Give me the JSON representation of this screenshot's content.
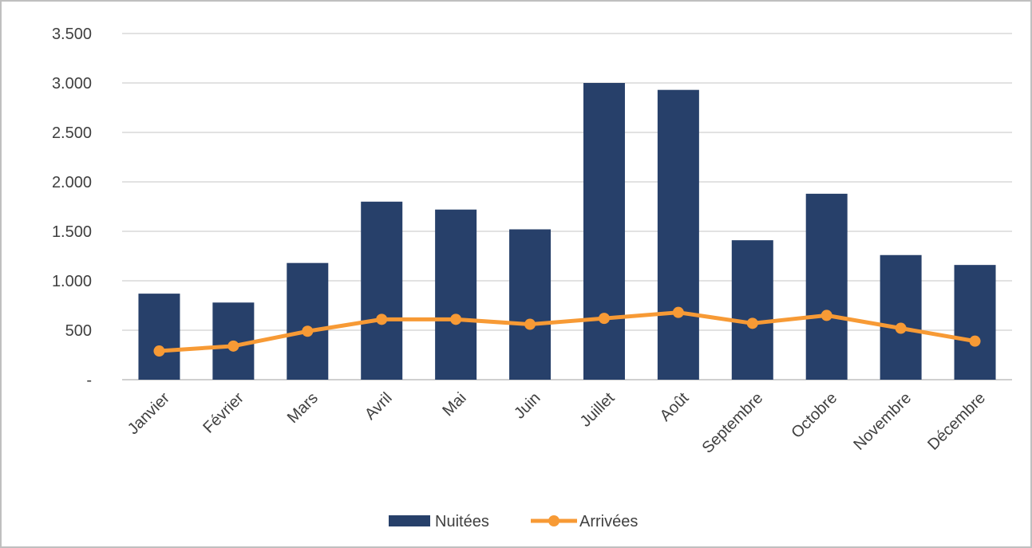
{
  "chart_data": {
    "type": "bar",
    "title": "",
    "xlabel": "",
    "ylabel": "",
    "ylim": [
      0,
      3500
    ],
    "y_ticks": [
      0,
      500,
      1000,
      1500,
      2000,
      2500,
      3000,
      3500
    ],
    "y_tick_labels": [
      "-",
      "500",
      "1.000",
      "1.500",
      "2.000",
      "2.500",
      "3.000",
      "3.500"
    ],
    "grid": true,
    "legend_position": "bottom",
    "categories": [
      "Janvier",
      "Février",
      "Mars",
      "Avril",
      "Mai",
      "Juin",
      "Juillet",
      "Août",
      "Septembre",
      "Octobre",
      "Novembre",
      "Décembre"
    ],
    "series": [
      {
        "name": "Nuitées",
        "kind": "bar",
        "color": "#27406A",
        "values": [
          870,
          780,
          1180,
          1800,
          1720,
          1520,
          3000,
          2930,
          1410,
          1880,
          1260,
          1160
        ]
      },
      {
        "name": "Arrivées",
        "kind": "line",
        "color": "#F79A35",
        "values": [
          290,
          340,
          490,
          610,
          610,
          560,
          620,
          680,
          570,
          650,
          520,
          390
        ]
      }
    ]
  }
}
